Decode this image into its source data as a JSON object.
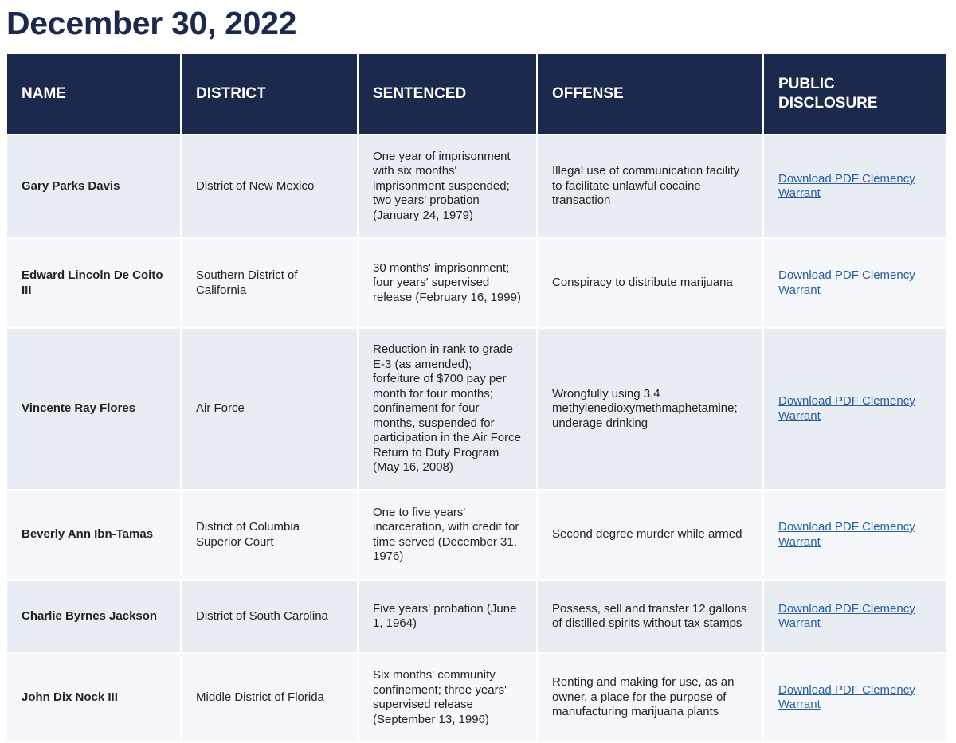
{
  "title": "December 30, 2022",
  "table": {
    "headers": [
      "NAME",
      "DISTRICT",
      "SENTENCED",
      "OFFENSE",
      "PUBLIC DISCLOSURE"
    ],
    "rows": [
      {
        "name": "Gary Parks Davis",
        "district": "District of New Mexico",
        "sentenced": "One year of imprisonment with six months' imprisonment suspended; two years' probation (January 24, 1979)",
        "offense": "Illegal use of communication facility to facilitate unlawful cocaine transaction",
        "disclosure": "Download PDF Clemency Warrant"
      },
      {
        "name": "Edward Lincoln De Coito III",
        "district": "Southern District of California",
        "sentenced": "30 months' imprisonment; four years' supervised release (February 16, 1999)",
        "offense": "Conspiracy to distribute marijuana",
        "disclosure": "Download PDF Clemency Warrant"
      },
      {
        "name": "Vincente Ray Flores",
        "district": "Air Force",
        "sentenced": "Reduction in rank to grade E-3 (as amended); forfeiture of $700 pay per month for four months; confinement for four months, suspended for participation in the Air Force Return to Duty Program (May 16, 2008)",
        "offense": "Wrongfully using 3,4 methylenedioxymethmaphetamine; underage drinking",
        "disclosure": "Download PDF Clemency Warrant"
      },
      {
        "name": "Beverly Ann Ibn-Tamas",
        "district": "District of Columbia Superior Court",
        "sentenced": "One to five years' incarceration, with credit for time served (December 31, 1976)",
        "offense": "Second degree murder while armed",
        "disclosure": "Download PDF Clemency Warrant"
      },
      {
        "name": "Charlie Byrnes Jackson",
        "district": "District of South Carolina",
        "sentenced": "Five years' probation (June 1, 1964)",
        "offense": "Possess, sell and transfer 12 gallons of distilled spirits without tax stamps",
        "disclosure": "Download PDF Clemency Warrant"
      },
      {
        "name": "John Dix Nock III",
        "district": "Middle District of Florida",
        "sentenced": "Six months' community confinement; three years' supervised release (September 13, 1996)",
        "offense": "Renting and making for use, as an owner, a place for the purpose of manufacturing marijuana plants",
        "disclosure": "Download PDF Clemency Warrant"
      }
    ]
  },
  "colors": {
    "header_bg": "#1b2a4c",
    "row_odd": "#e8ecf3",
    "row_even": "#f5f7fa",
    "link": "#2a5f9e"
  }
}
